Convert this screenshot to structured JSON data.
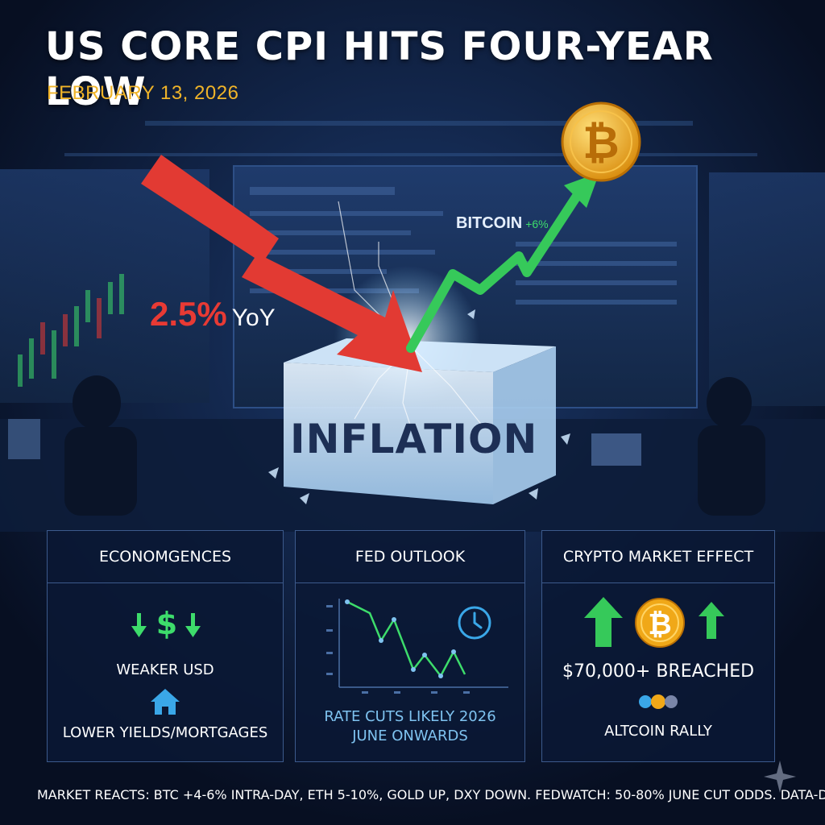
{
  "headline": "US CORE CPI HITS FOUR-YEAR LOW",
  "date": "FEBRUARY 13, 2026",
  "hero": {
    "bitcoin_label": "BITCOIN",
    "bitcoin_change": "+6%",
    "cpi_value": "2.5%",
    "cpi_unit": "YoY",
    "cube_label": "INFLATION"
  },
  "panels": [
    {
      "title": "ECONOMGENCES",
      "lines": [
        "WEAKER USD",
        "LOWER YIELDS/MORTGAGES"
      ],
      "icons": [
        "arrow-down-icon",
        "dollar-icon",
        "arrow-down-icon",
        "house-icon"
      ]
    },
    {
      "title": "FED OUTLOOK",
      "lines": [
        "RATE CUTS LIKELY 2026",
        "JUNE ONWARDS"
      ],
      "icons": [
        "clock-icon",
        "line-chart-icon"
      ]
    },
    {
      "title": "CRYPTO MARKET EFFECT",
      "lines": [
        "$70,000+ BREACHED",
        "ALTCOIN RALLY"
      ],
      "icons": [
        "arrow-up-icon",
        "bitcoin-icon",
        "arrow-up-icon",
        "altcoins-icon"
      ]
    }
  ],
  "ticker": "MARKET REACTS: BTC +4-6% INTRA-DAY, ETH 5-10%, GOLD UP, DXY DOWN. FEDWATCH: 50-80% JUNE CUT ODDS. DATA-DEPENDENT FUTURE...",
  "colors": {
    "background": "#0a1630",
    "headline": "#ffffff",
    "date": "#f0b429",
    "down_arrow": "#e83a34",
    "up_arrow": "#3ddc6b",
    "panel_border": "#3c5a8c",
    "bitcoin_gold": "#f0a818"
  }
}
